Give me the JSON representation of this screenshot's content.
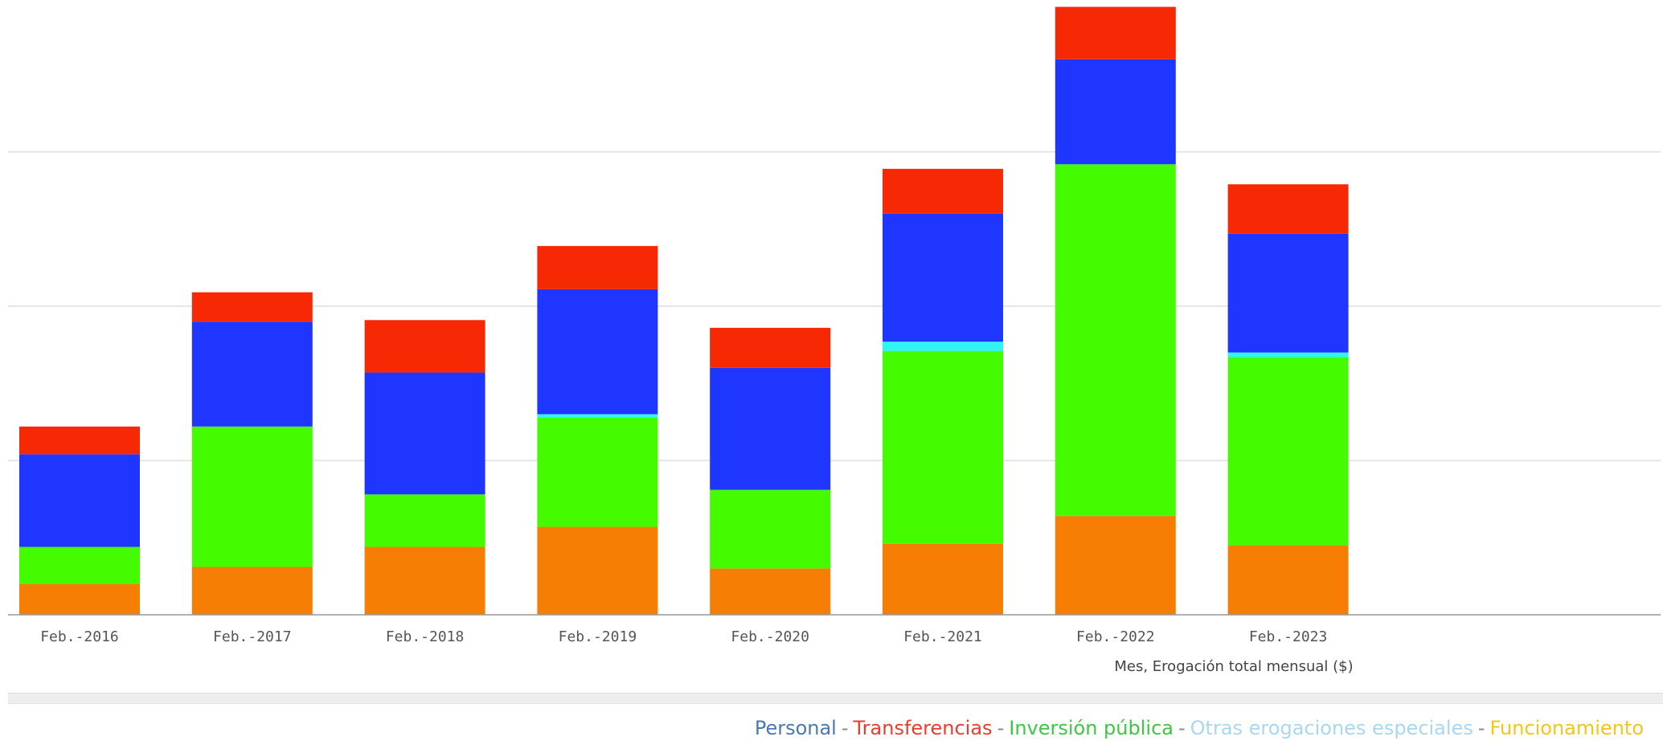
{
  "chart_data": {
    "type": "bar",
    "stacked": true,
    "categories": [
      "Feb.-2016",
      "Feb.-2017",
      "Feb.-2018",
      "Feb.-2019",
      "Feb.-2020",
      "Feb.-2021",
      "Feb.-2022",
      "Feb.-2023"
    ],
    "xlabel": "Mes, Erogación total mensual ($)",
    "ylim": [
      0,
      4
    ],
    "grid": true,
    "legend_position": "bottom-right",
    "series": [
      {
        "name": "Funcionamiento",
        "color": "#f77e04",
        "values": [
          0.2,
          0.31,
          0.44,
          0.57,
          0.3,
          0.46,
          0.64,
          0.45
        ]
      },
      {
        "name": "Inversión pública",
        "color": "#44fb00",
        "values": [
          0.24,
          0.91,
          0.34,
          0.71,
          0.51,
          1.25,
          2.28,
          1.22
        ]
      },
      {
        "name": "Otras erogaciones especiales",
        "color": "#2ff4f4",
        "values": [
          0.0,
          0.0,
          0.0,
          0.02,
          0.0,
          0.06,
          0.0,
          0.03
        ]
      },
      {
        "name": "Personal",
        "color": "#1e36ff",
        "values": [
          0.6,
          0.68,
          0.79,
          0.81,
          0.79,
          0.83,
          0.68,
          0.77
        ]
      },
      {
        "name": "Transferencias",
        "color": "#f72804",
        "values": [
          0.18,
          0.19,
          0.34,
          0.28,
          0.26,
          0.29,
          0.34,
          0.32
        ]
      }
    ]
  },
  "legend": {
    "separator": "-",
    "items": [
      {
        "label": "Personal",
        "color": "#4a78b5"
      },
      {
        "label": "Transferencias",
        "color": "#ef3b2c"
      },
      {
        "label": "Inversión pública",
        "color": "#3cc840"
      },
      {
        "label": "Otras erogaciones especiales",
        "color": "#a7d8f0"
      },
      {
        "label": "Funcionamiento",
        "color": "#f5c518"
      }
    ]
  }
}
